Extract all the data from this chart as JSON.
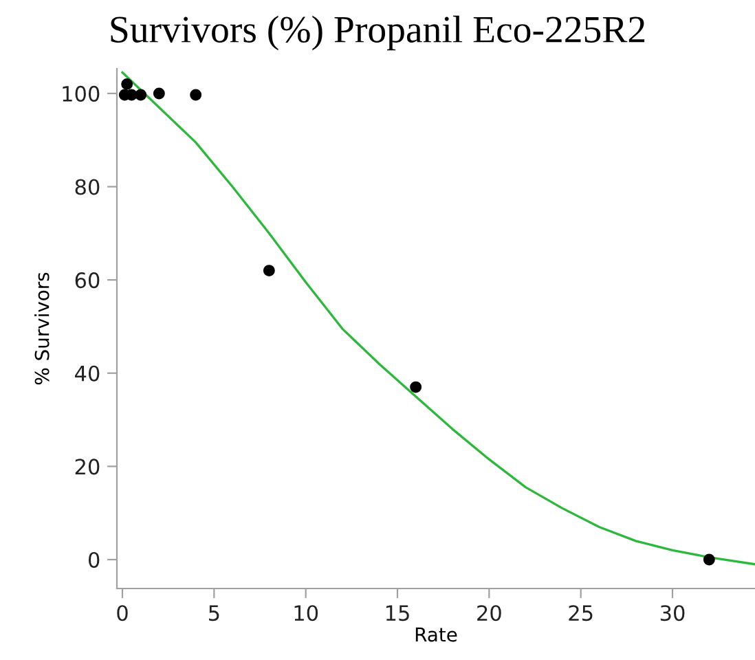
{
  "chart_data": {
    "type": "scatter",
    "title": "Survivors (%) Propanil Eco-225R2",
    "xlabel": "Rate",
    "ylabel": "% Survivors",
    "xlim": [
      -0.3,
      34.5
    ],
    "ylim": [
      -6.2,
      105.3
    ],
    "xticks": [
      0,
      5,
      10,
      15,
      20,
      25,
      30
    ],
    "yticks": [
      0,
      20,
      40,
      60,
      80,
      100
    ],
    "grid": false,
    "legend": false,
    "series": [
      {
        "marker": "circle",
        "color": "#000000",
        "x": [
          0.125,
          0.25,
          0.5,
          1,
          2,
          4,
          8,
          16,
          32
        ],
        "values": [
          99.7,
          102,
          99.7,
          99.7,
          100,
          99.7,
          62,
          37,
          0
        ]
      },
      {
        "type": "line",
        "color": "#2db83d",
        "x": [
          0,
          2,
          4,
          6,
          8,
          10,
          12,
          14,
          16,
          18,
          20,
          22,
          24,
          26,
          28,
          30,
          32,
          34.5
        ],
        "values": [
          104.5,
          97,
          89.5,
          80,
          70,
          59.5,
          49.5,
          42,
          35,
          28,
          21.5,
          15.5,
          11,
          7,
          4,
          2,
          0.5,
          -1
        ]
      }
    ]
  }
}
